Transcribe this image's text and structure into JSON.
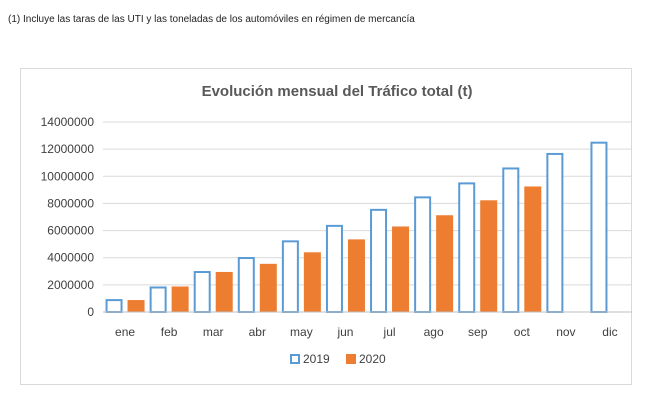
{
  "note": "(1) Incluye las taras de las UTI y las toneladas de los automóviles en régimen de mercancía",
  "chart_data": {
    "type": "bar",
    "title": "Evolución mensual del Tráfico total (t)",
    "xlabel": "",
    "ylabel": "",
    "categories": [
      "ene",
      "feb",
      "mar",
      "abr",
      "may",
      "jun",
      "jul",
      "ago",
      "sep",
      "oct",
      "nov",
      "dic"
    ],
    "series": [
      {
        "name": "2019",
        "values": [
          950000,
          1880000,
          3020000,
          4050000,
          5280000,
          6420000,
          7600000,
          8520000,
          9550000,
          10650000,
          11720000,
          12550000
        ],
        "color": "#5b9bd5",
        "style": "outline"
      },
      {
        "name": "2020",
        "values": [
          880000,
          1880000,
          2950000,
          3550000,
          4400000,
          5350000,
          6300000,
          7130000,
          8230000,
          9250000,
          null,
          null
        ],
        "color": "#ed7d31",
        "style": "filled"
      }
    ],
    "ylim": [
      0,
      14000000
    ],
    "yticks": [
      "0",
      "2000000",
      "4000000",
      "6000000",
      "8000000",
      "10000000",
      "12000000",
      "14000000"
    ],
    "grid": true,
    "legend": "bottom"
  }
}
